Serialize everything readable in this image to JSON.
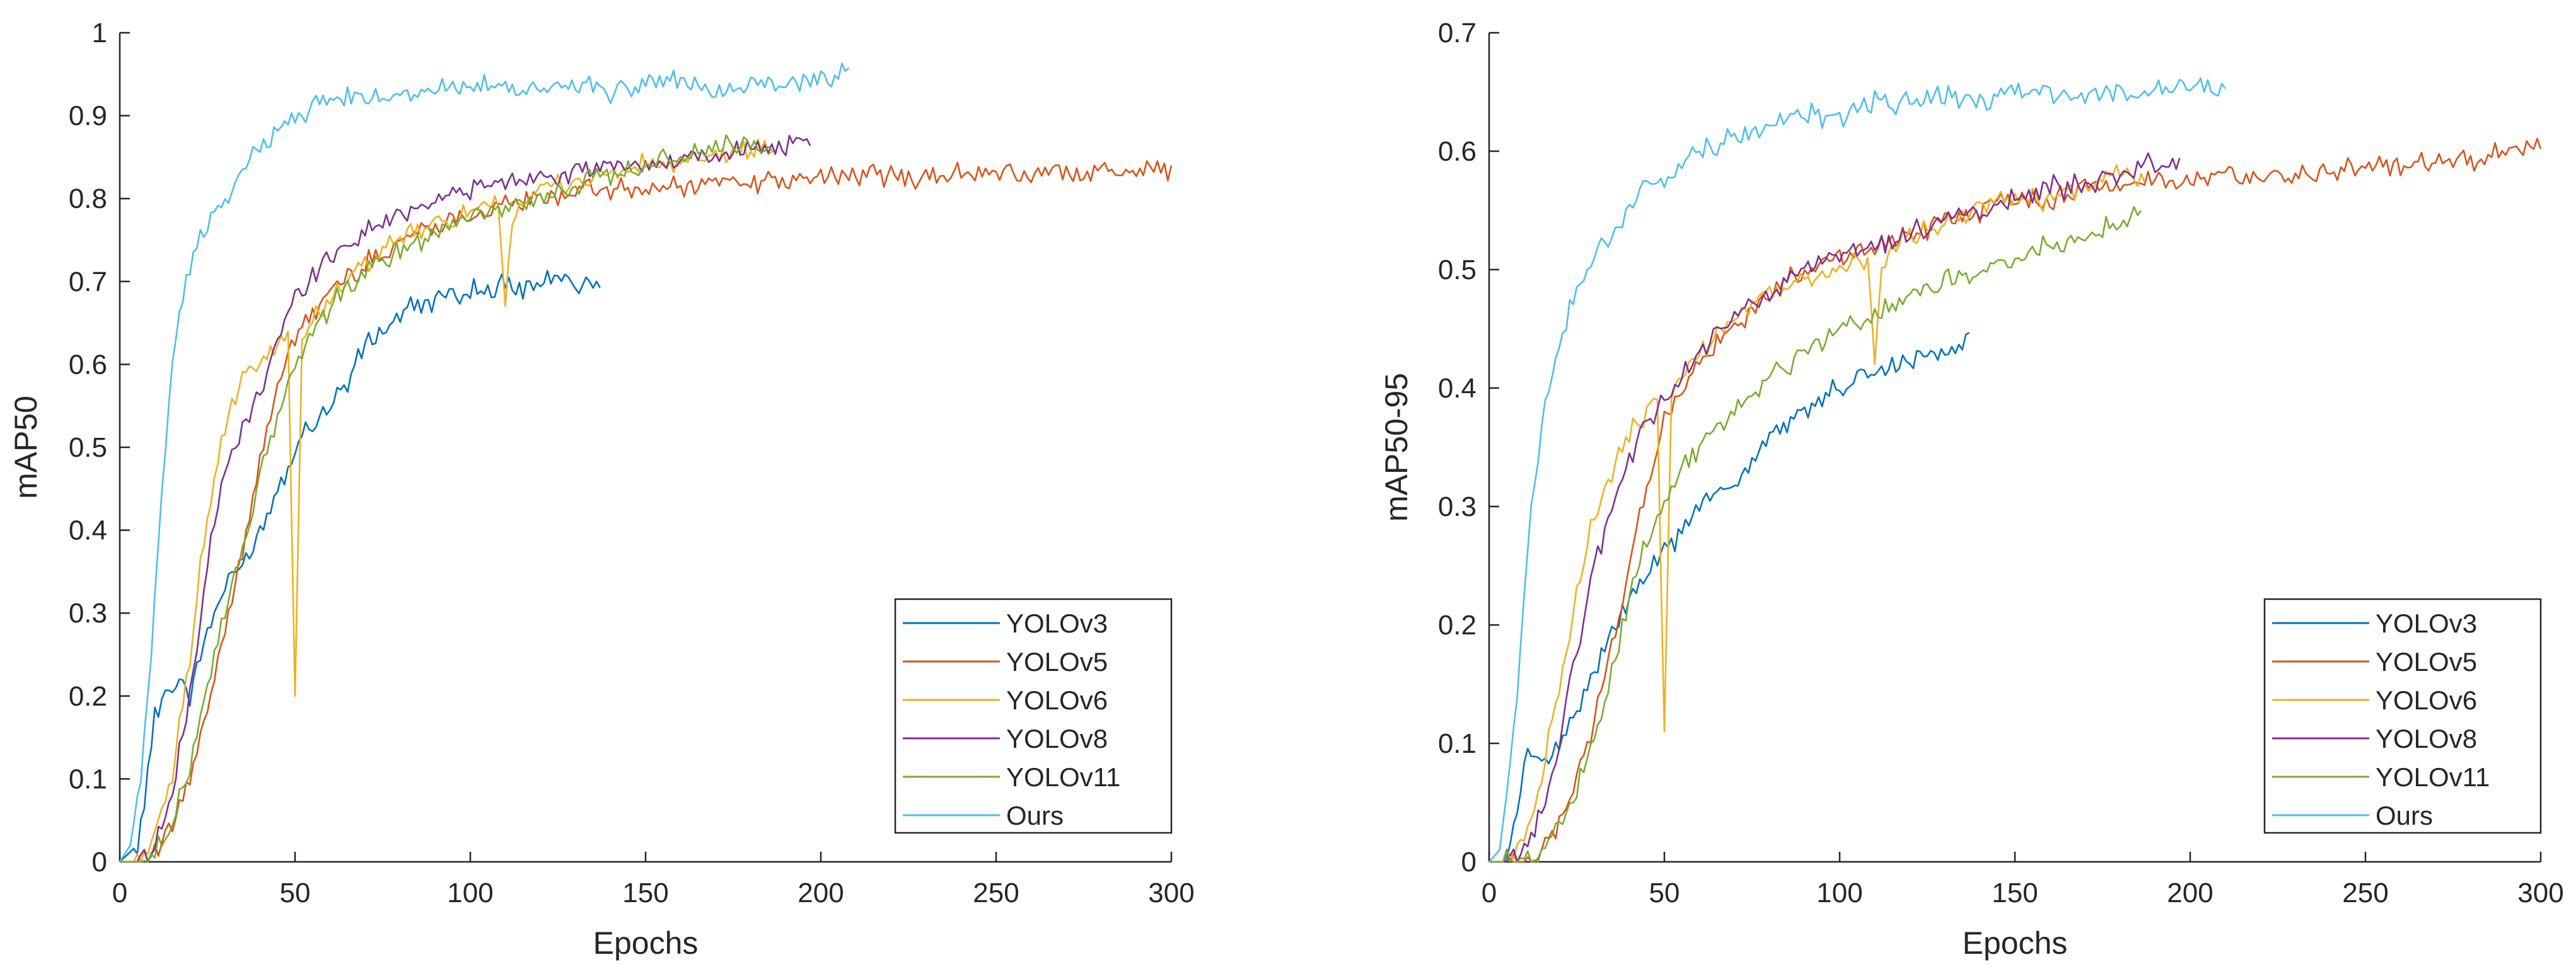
{
  "chart_data": [
    {
      "type": "line",
      "title": "",
      "xlabel": "Epochs",
      "ylabel": "mAP50",
      "xlim": [
        0,
        300
      ],
      "ylim": [
        0,
        1
      ],
      "xticks": [
        "0",
        "50",
        "100",
        "150",
        "200",
        "250",
        "300"
      ],
      "yticks": [
        "0",
        "0.1",
        "0.2",
        "0.3",
        "0.4",
        "0.5",
        "0.6",
        "0.7",
        "0.8",
        "0.9",
        "1"
      ],
      "legend_position": "bottom-right",
      "series": [
        {
          "name": "YOLOv3",
          "color": "#0072BD",
          "x": [
            0,
            5,
            8,
            10,
            12,
            15,
            18,
            20,
            25,
            30,
            35,
            40,
            45,
            50,
            55,
            60,
            65,
            70,
            75,
            80,
            85,
            90,
            95,
            100,
            105,
            110,
            115,
            120,
            125,
            130,
            137
          ],
          "values": [
            0.0,
            0.02,
            0.1,
            0.18,
            0.2,
            0.21,
            0.22,
            0.2,
            0.28,
            0.33,
            0.36,
            0.4,
            0.45,
            0.5,
            0.53,
            0.55,
            0.58,
            0.62,
            0.64,
            0.66,
            0.67,
            0.68,
            0.68,
            0.69,
            0.69,
            0.7,
            0.69,
            0.7,
            0.7,
            0.7,
            0.695
          ]
        },
        {
          "name": "YOLOv5",
          "color": "#D95319",
          "x": [
            0,
            5,
            10,
            15,
            20,
            25,
            30,
            35,
            40,
            45,
            50,
            55,
            60,
            70,
            80,
            90,
            100,
            110,
            120,
            130,
            140,
            150,
            160,
            170,
            180,
            190,
            200,
            210,
            220,
            230,
            240,
            250,
            260,
            270,
            280,
            290,
            300
          ],
          "values": [
            0.0,
            0.0,
            0.01,
            0.04,
            0.1,
            0.18,
            0.28,
            0.38,
            0.48,
            0.58,
            0.63,
            0.66,
            0.69,
            0.72,
            0.75,
            0.77,
            0.78,
            0.79,
            0.8,
            0.81,
            0.81,
            0.81,
            0.815,
            0.82,
            0.82,
            0.82,
            0.825,
            0.825,
            0.83,
            0.825,
            0.83,
            0.83,
            0.83,
            0.835,
            0.83,
            0.835,
            0.835
          ]
        },
        {
          "name": "YOLOv6",
          "color": "#EDB120",
          "x": [
            0,
            5,
            10,
            15,
            20,
            25,
            30,
            35,
            40,
            45,
            48,
            50,
            52,
            55,
            60,
            70,
            80,
            90,
            100,
            108,
            110,
            112,
            115,
            120,
            130,
            140,
            150,
            160,
            170,
            180,
            187
          ],
          "values": [
            0.0,
            0.0,
            0.03,
            0.1,
            0.25,
            0.42,
            0.52,
            0.58,
            0.6,
            0.62,
            0.64,
            0.2,
            0.63,
            0.65,
            0.68,
            0.72,
            0.75,
            0.77,
            0.78,
            0.79,
            0.67,
            0.78,
            0.8,
            0.81,
            0.82,
            0.83,
            0.84,
            0.84,
            0.85,
            0.86,
            0.86
          ]
        },
        {
          "name": "YOLOv8",
          "color": "#7E2F8E",
          "x": [
            0,
            5,
            10,
            15,
            20,
            25,
            30,
            35,
            40,
            45,
            50,
            55,
            60,
            70,
            80,
            90,
            100,
            110,
            120,
            130,
            140,
            150,
            160,
            170,
            180,
            190,
            197
          ],
          "values": [
            0.0,
            0.0,
            0.02,
            0.08,
            0.2,
            0.36,
            0.47,
            0.52,
            0.57,
            0.63,
            0.68,
            0.71,
            0.73,
            0.76,
            0.78,
            0.8,
            0.81,
            0.82,
            0.83,
            0.83,
            0.84,
            0.84,
            0.845,
            0.85,
            0.86,
            0.86,
            0.865
          ]
        },
        {
          "name": "YOLOv11",
          "color": "#77AC30",
          "x": [
            0,
            5,
            10,
            15,
            20,
            25,
            30,
            35,
            40,
            45,
            50,
            55,
            60,
            70,
            80,
            90,
            100,
            110,
            120,
            130,
            140,
            150,
            160,
            170,
            180,
            186
          ],
          "values": [
            0.0,
            0.0,
            0.01,
            0.04,
            0.12,
            0.22,
            0.3,
            0.38,
            0.46,
            0.54,
            0.6,
            0.64,
            0.67,
            0.71,
            0.74,
            0.76,
            0.78,
            0.79,
            0.8,
            0.82,
            0.83,
            0.84,
            0.85,
            0.86,
            0.865,
            0.86
          ]
        },
        {
          "name": "Ours",
          "color": "#4DBEEE",
          "x": [
            0,
            3,
            6,
            9,
            12,
            15,
            18,
            20,
            25,
            30,
            35,
            40,
            45,
            50,
            55,
            60,
            70,
            80,
            90,
            100,
            110,
            120,
            130,
            140,
            150,
            160,
            170,
            180,
            190,
            200,
            208
          ],
          "values": [
            0.0,
            0.02,
            0.1,
            0.25,
            0.45,
            0.6,
            0.68,
            0.72,
            0.77,
            0.8,
            0.83,
            0.86,
            0.88,
            0.9,
            0.91,
            0.92,
            0.92,
            0.93,
            0.93,
            0.94,
            0.93,
            0.93,
            0.94,
            0.93,
            0.94,
            0.94,
            0.93,
            0.94,
            0.94,
            0.945,
            0.95
          ]
        }
      ]
    },
    {
      "type": "line",
      "title": "",
      "xlabel": "Epochs",
      "ylabel": "mAP50-95",
      "xlim": [
        0,
        300
      ],
      "ylim": [
        0,
        0.7
      ],
      "xticks": [
        "0",
        "50",
        "100",
        "150",
        "200",
        "250",
        "300"
      ],
      "yticks": [
        "0",
        "0.1",
        "0.2",
        "0.3",
        "0.4",
        "0.5",
        "0.6",
        "0.7"
      ],
      "legend_position": "bottom-right",
      "series": [
        {
          "name": "YOLOv3",
          "color": "#0072BD",
          "x": [
            0,
            5,
            8,
            10,
            12,
            15,
            18,
            20,
            25,
            30,
            35,
            40,
            45,
            50,
            55,
            60,
            65,
            70,
            75,
            80,
            85,
            90,
            95,
            100,
            105,
            110,
            115,
            120,
            125,
            130,
            137
          ],
          "values": [
            0.0,
            0.0,
            0.04,
            0.08,
            0.09,
            0.09,
            0.09,
            0.1,
            0.13,
            0.16,
            0.19,
            0.22,
            0.24,
            0.26,
            0.28,
            0.3,
            0.31,
            0.32,
            0.34,
            0.36,
            0.37,
            0.38,
            0.39,
            0.4,
            0.41,
            0.41,
            0.42,
            0.42,
            0.43,
            0.43,
            0.44
          ]
        },
        {
          "name": "YOLOv5",
          "color": "#D95319",
          "x": [
            0,
            5,
            10,
            15,
            20,
            25,
            30,
            35,
            40,
            45,
            50,
            55,
            60,
            70,
            80,
            90,
            100,
            110,
            120,
            130,
            140,
            150,
            160,
            170,
            180,
            190,
            200,
            210,
            220,
            230,
            240,
            250,
            260,
            270,
            280,
            290,
            300
          ],
          "values": [
            0.0,
            0.0,
            0.0,
            0.01,
            0.03,
            0.07,
            0.12,
            0.18,
            0.25,
            0.32,
            0.37,
            0.4,
            0.42,
            0.45,
            0.48,
            0.5,
            0.51,
            0.52,
            0.53,
            0.54,
            0.55,
            0.56,
            0.56,
            0.57,
            0.57,
            0.575,
            0.575,
            0.58,
            0.58,
            0.58,
            0.585,
            0.585,
            0.59,
            0.59,
            0.59,
            0.6,
            0.6
          ]
        },
        {
          "name": "YOLOv6",
          "color": "#EDB120",
          "x": [
            0,
            5,
            10,
            15,
            20,
            25,
            30,
            35,
            40,
            45,
            48,
            50,
            52,
            55,
            60,
            70,
            80,
            90,
            100,
            108,
            110,
            112,
            115,
            120,
            130,
            140,
            150,
            160,
            170,
            180,
            187
          ],
          "values": [
            0.0,
            0.0,
            0.02,
            0.07,
            0.15,
            0.23,
            0.29,
            0.33,
            0.36,
            0.38,
            0.39,
            0.11,
            0.39,
            0.41,
            0.43,
            0.46,
            0.48,
            0.49,
            0.5,
            0.51,
            0.42,
            0.5,
            0.52,
            0.53,
            0.54,
            0.55,
            0.56,
            0.56,
            0.57,
            0.58,
            0.58
          ]
        },
        {
          "name": "YOLOv8",
          "color": "#7E2F8E",
          "x": [
            0,
            5,
            10,
            15,
            20,
            25,
            30,
            35,
            40,
            45,
            50,
            55,
            60,
            70,
            80,
            90,
            100,
            110,
            120,
            130,
            140,
            150,
            160,
            170,
            180,
            190,
            197
          ],
          "values": [
            0.0,
            0.0,
            0.01,
            0.04,
            0.1,
            0.18,
            0.25,
            0.3,
            0.34,
            0.37,
            0.39,
            0.41,
            0.43,
            0.46,
            0.48,
            0.5,
            0.51,
            0.52,
            0.53,
            0.54,
            0.55,
            0.56,
            0.57,
            0.57,
            0.58,
            0.59,
            0.59
          ]
        },
        {
          "name": "YOLOv11",
          "color": "#77AC30",
          "x": [
            0,
            5,
            10,
            15,
            20,
            25,
            30,
            35,
            40,
            45,
            50,
            55,
            60,
            70,
            80,
            90,
            100,
            110,
            120,
            130,
            140,
            150,
            160,
            170,
            180,
            186
          ],
          "values": [
            0.0,
            0.0,
            0.0,
            0.01,
            0.03,
            0.06,
            0.1,
            0.16,
            0.22,
            0.27,
            0.3,
            0.33,
            0.35,
            0.38,
            0.41,
            0.43,
            0.45,
            0.46,
            0.48,
            0.49,
            0.5,
            0.51,
            0.52,
            0.53,
            0.54,
            0.55
          ]
        },
        {
          "name": "Ours",
          "color": "#4DBEEE",
          "x": [
            0,
            3,
            6,
            9,
            12,
            15,
            18,
            20,
            25,
            30,
            35,
            40,
            45,
            50,
            55,
            60,
            70,
            80,
            90,
            100,
            110,
            120,
            130,
            140,
            150,
            160,
            170,
            180,
            190,
            200,
            210
          ],
          "values": [
            0.0,
            0.01,
            0.08,
            0.18,
            0.3,
            0.37,
            0.41,
            0.44,
            0.48,
            0.51,
            0.53,
            0.55,
            0.57,
            0.58,
            0.59,
            0.6,
            0.61,
            0.62,
            0.63,
            0.63,
            0.64,
            0.64,
            0.645,
            0.64,
            0.65,
            0.65,
            0.645,
            0.65,
            0.65,
            0.655,
            0.65
          ]
        }
      ]
    }
  ]
}
